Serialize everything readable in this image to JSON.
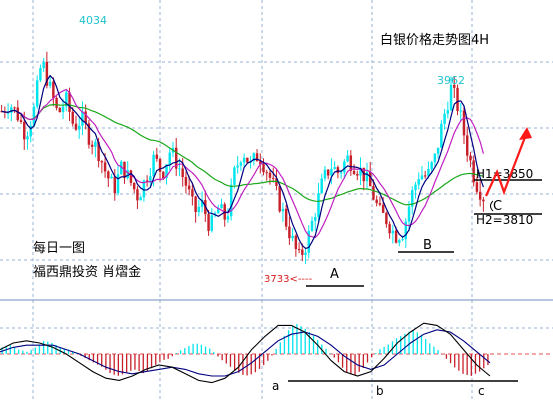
{
  "chart_data": [
    {
      "type": "candlestick",
      "title": "白银价格走势图4H",
      "caption_lines": [
        "每日一图",
        "福西鼎投资 肖熠金"
      ],
      "price_labels": {
        "high_left": "4034",
        "high_right": "3962",
        "low_left": "3733<----",
        "h1": "H1=3850",
        "h2": "H2=3810"
      },
      "pattern_labels": {
        "a": "A",
        "b": "B",
        "c": "C"
      },
      "ylim": [
        3700,
        4060
      ],
      "grid": true,
      "colors": {
        "up": "#00e5ee",
        "down": "#c8202a",
        "ma_fast": "#000080",
        "ma_mid": "#c020c0",
        "ma_slow": "#1aa81a",
        "forecast_arrow": "#ff1a1a",
        "grid": "#9ab3d6",
        "label_cyan": "#1fc4d0",
        "label_red": "#d81e1e"
      },
      "close_path": [
        3930,
        3940,
        3925,
        3900,
        3930,
        3995,
        3960,
        3925,
        3945,
        3910,
        3920,
        3895,
        3880,
        3850,
        3830,
        3860,
        3840,
        3820,
        3845,
        3870,
        3850,
        3880,
        3860,
        3835,
        3800,
        3810,
        3780,
        3805,
        3790,
        3850,
        3880,
        3860,
        3875,
        3855,
        3830,
        3800,
        3770,
        3740,
        3760,
        3800,
        3840,
        3860,
        3850,
        3870,
        3860,
        3850,
        3830,
        3800,
        3790,
        3770,
        3775,
        3820,
        3850,
        3845,
        3870,
        3920,
        3960,
        3930,
        3880,
        3840,
        3820
      ]
    },
    {
      "type": "macd",
      "baseline_label_a": "a",
      "baseline_label_b": "b",
      "baseline_label_c": "c",
      "histogram": [
        0.3,
        0.4,
        0.2,
        0.1,
        0.3,
        0.6,
        0.5,
        0.3,
        0.2,
        0.0,
        -0.2,
        -0.4,
        -0.6,
        -0.9,
        -1.0,
        -0.8,
        -0.7,
        -0.9,
        -0.6,
        -0.3,
        -0.2,
        0.1,
        0.3,
        0.5,
        0.4,
        0.2,
        -0.2,
        -0.5,
        -0.8,
        -1.0,
        -0.9,
        -0.6,
        -0.2,
        0.4,
        1.0,
        1.4,
        1.2,
        0.9,
        0.5,
        0.1,
        -0.3,
        -0.8,
        -1.0,
        -0.7,
        -0.2,
        0.2,
        0.4,
        0.7,
        0.9,
        1.1,
        0.9,
        0.5,
        0.2,
        -0.2,
        -0.6,
        -0.9,
        -1.0,
        -0.8,
        -0.5
      ],
      "dif": [
        0.2,
        0.5,
        0.6,
        0.5,
        0.3,
        0.0,
        -0.4,
        -0.8,
        -1.1,
        -1.2,
        -1.0,
        -0.7,
        -0.5,
        -0.6,
        -0.9,
        -1.2,
        -1.3,
        -1.1,
        -0.6,
        0.2,
        0.8,
        1.3,
        1.3,
        1.0,
        0.4,
        -0.3,
        -0.8,
        -1.0,
        -0.8,
        -0.2,
        0.5,
        1.0,
        1.4,
        1.3,
        0.9,
        0.2,
        -0.5,
        -1.0
      ],
      "dea": [
        0.1,
        0.3,
        0.4,
        0.4,
        0.4,
        0.2,
        0.0,
        -0.3,
        -0.6,
        -0.8,
        -0.9,
        -0.8,
        -0.7,
        -0.6,
        -0.7,
        -0.9,
        -1.0,
        -1.0,
        -0.8,
        -0.4,
        0.1,
        0.6,
        0.9,
        1.0,
        0.8,
        0.4,
        -0.1,
        -0.5,
        -0.7,
        -0.5,
        0.0,
        0.5,
        0.9,
        1.1,
        1.0,
        0.6,
        0.1,
        -0.4
      ]
    }
  ]
}
